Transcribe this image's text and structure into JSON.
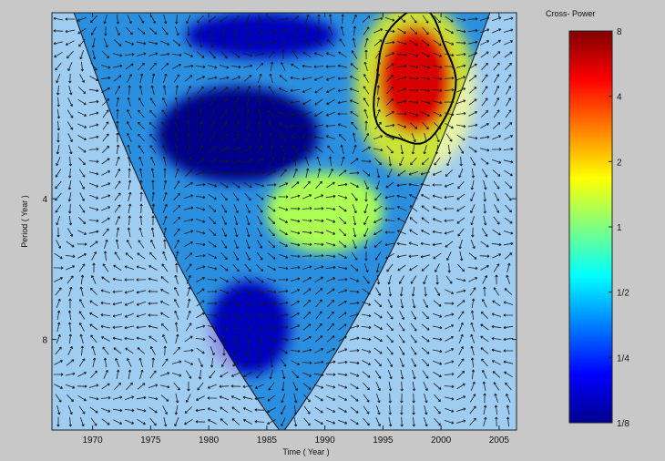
{
  "chart_data": {
    "type": "heatmap",
    "subtype": "wavelet cross-spectrum",
    "xlabel": "Time ( Year )",
    "ylabel": "Period    ( Year )",
    "x_ticks": [
      1970,
      1975,
      1980,
      1985,
      1990,
      1995,
      2000,
      2005
    ],
    "y_ticks": [
      4,
      8
    ],
    "xlim": [
      1966.5,
      2006.5
    ],
    "ylim_period": [
      1.6,
      12.5
    ],
    "y_scale": "log2",
    "colorbar": {
      "title": "Cross- Power",
      "ticks": [
        "8",
        "4",
        "2",
        "1",
        "1/2",
        "1/4",
        "1/8"
      ],
      "scale": "log2",
      "range": [
        0.125,
        8
      ]
    },
    "cone_of_influence": {
      "apex_year": 1986.3,
      "top_left_year": 1968.4,
      "top_right_year": 2004.2
    },
    "regions": [
      {
        "label": "high",
        "x": [
          1994.5,
          2001.0
        ],
        "period": [
          1.7,
          2.9
        ],
        "value": 5.5,
        "significant_contour": true
      },
      {
        "label": "low",
        "x": [
          1975.5,
          1989.5
        ],
        "period": [
          2.3,
          3.7
        ],
        "value": 0.13
      },
      {
        "label": "low",
        "x": [
          1978.0,
          1991.0
        ],
        "period": [
          1.6,
          2.0
        ],
        "value": 0.16
      },
      {
        "label": "moderate",
        "x": [
          1985.0,
          1995.0
        ],
        "period": [
          3.5,
          5.2
        ],
        "value": 1.2
      },
      {
        "label": "low",
        "x": [
          1980.0,
          1987.0
        ],
        "period": [
          6.0,
          9.5
        ],
        "value": 0.16
      }
    ],
    "grid": false,
    "arrows": "phase arrows over full plot"
  }
}
